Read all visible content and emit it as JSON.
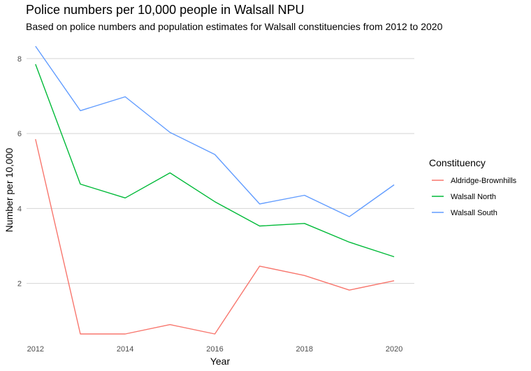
{
  "chart_data": {
    "type": "line",
    "title": "Police numbers per 10,000 people in Walsall NPU",
    "subtitle": "Based on police numbers and population estimates for Walsall constituencies from 2012 to 2020",
    "xlabel": "Year",
    "ylabel": "Number per 10,000",
    "x": [
      2012,
      2013,
      2014,
      2015,
      2016,
      2017,
      2018,
      2019,
      2020
    ],
    "xticks": [
      2012,
      2014,
      2016,
      2018,
      2020
    ],
    "yticks": [
      2,
      4,
      6,
      8
    ],
    "xlim": [
      2011.8,
      2020.45
    ],
    "ylim": [
      0.5,
      8.5
    ],
    "grid": "horizontal",
    "legend": {
      "title": "Constituency",
      "position": "right"
    },
    "series": [
      {
        "name": "Aldridge-Brownhills",
        "color": "#F8766D",
        "values": [
          5.85,
          0.65,
          0.65,
          0.9,
          0.65,
          2.46,
          2.21,
          1.82,
          2.07
        ]
      },
      {
        "name": "Walsall North",
        "color": "#00BA38",
        "values": [
          7.85,
          4.65,
          4.28,
          4.95,
          4.18,
          3.53,
          3.6,
          3.1,
          2.71
        ]
      },
      {
        "name": "Walsall South",
        "color": "#619CFF",
        "values": [
          8.33,
          6.61,
          6.98,
          6.03,
          5.44,
          4.12,
          4.35,
          3.78,
          4.63
        ]
      }
    ]
  }
}
